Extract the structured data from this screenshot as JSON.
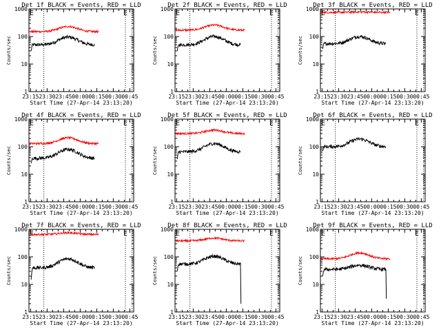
{
  "figure": {
    "x_tick_labels": [
      "23:15",
      "23:30",
      "23:45",
      "00:00",
      "00:15",
      "00:30",
      "00:45"
    ],
    "x_axis_label": "Start Time (27-Apr-14 23:13:20)",
    "y_axis_label": "Counts/sec",
    "y_tick_labels": [
      "1",
      "10",
      "100",
      "1000"
    ],
    "marker_labels": [
      "E",
      "E"
    ],
    "colors": {
      "events": "#000000",
      "lld": "#ff0000",
      "background": "#ffffff"
    }
  },
  "chart_data": [
    {
      "type": "line",
      "title": "Det 1f BLACK = Events, RED = LLD",
      "xlabel": "Start Time (27-Apr-14 23:13:20)",
      "ylabel": "Counts/sec",
      "x_ticks": [
        "23:15",
        "23:30",
        "23:45",
        "00:00",
        "00:15",
        "00:30",
        "00:45"
      ],
      "y_scale": "log",
      "ylim": [
        1,
        1000
      ],
      "series": [
        {
          "name": "BLACK = Events",
          "color": "#000000",
          "x_min": [
            0.5,
            58
          ],
          "y_start": 30,
          "y_base": 50,
          "y_peak": 95
        },
        {
          "name": "RED = LLD",
          "color": "#ff0000",
          "x_min": [
            -1,
            62
          ],
          "y_base": 150,
          "y_peak": 230
        }
      ]
    },
    {
      "type": "line",
      "title": "Det 2f BLACK = Events, RED = LLD",
      "xlabel": "Start Time (27-Apr-14 23:13:20)",
      "ylabel": "Counts/sec",
      "x_ticks": [
        "23:15",
        "23:30",
        "23:45",
        "00:00",
        "00:15",
        "00:30",
        "00:45"
      ],
      "y_scale": "log",
      "ylim": [
        1,
        1000
      ],
      "series": [
        {
          "name": "BLACK = Events",
          "color": "#000000",
          "x_min": [
            0.5,
            58
          ],
          "y_start": 30,
          "y_base": 50,
          "y_peak": 100
        },
        {
          "name": "RED = LLD",
          "color": "#ff0000",
          "x_min": [
            -1,
            62
          ],
          "y_base": 170,
          "y_peak": 260
        }
      ]
    },
    {
      "type": "line",
      "title": "Det 3f BLACK = Events, RED = LLD",
      "xlabel": "Start Time (27-Apr-14 23:13:20)",
      "ylabel": "Counts/sec",
      "x_ticks": [
        "23:15",
        "23:30",
        "23:45",
        "00:00",
        "00:15",
        "00:30",
        "00:45"
      ],
      "y_scale": "log",
      "ylim": [
        1,
        1000
      ],
      "series": [
        {
          "name": "BLACK = Events",
          "color": "#000000",
          "x_min": [
            0.5,
            58
          ],
          "y_start": 35,
          "y_base": 55,
          "y_peak": 100
        },
        {
          "name": "RED = LLD",
          "color": "#ff0000",
          "x_min": [
            -1,
            62
          ],
          "y_base": 750,
          "y_peak": 780
        }
      ]
    },
    {
      "type": "line",
      "title": "Det 4f BLACK = Events, RED = LLD",
      "xlabel": "Start Time (27-Apr-14 23:13:20)",
      "ylabel": "Counts/sec",
      "x_ticks": [
        "23:15",
        "23:30",
        "23:45",
        "00:00",
        "00:15",
        "00:30",
        "00:45"
      ],
      "y_scale": "log",
      "ylim": [
        1,
        1000
      ],
      "series": [
        {
          "name": "BLACK = Events",
          "color": "#000000",
          "x_min": [
            0.5,
            58
          ],
          "y_start": 25,
          "y_base": 38,
          "y_peak": 80
        },
        {
          "name": "RED = LLD",
          "color": "#ff0000",
          "x_min": [
            -1,
            62
          ],
          "y_base": 130,
          "y_peak": 210
        }
      ]
    },
    {
      "type": "line",
      "title": "Det 5f BLACK = Events, RED = LLD",
      "xlabel": "Start Time (27-Apr-14 23:13:20)",
      "ylabel": "Counts/sec",
      "x_ticks": [
        "23:15",
        "23:30",
        "23:45",
        "00:00",
        "00:15",
        "00:30",
        "00:45"
      ],
      "y_scale": "log",
      "ylim": [
        1,
        1000
      ],
      "series": [
        {
          "name": "BLACK = Events",
          "color": "#000000",
          "x_min": [
            0.5,
            58
          ],
          "y_start": 35,
          "y_base": 65,
          "y_peak": 130
        },
        {
          "name": "RED = LLD",
          "color": "#ff0000",
          "x_min": [
            -1,
            62
          ],
          "y_base": 300,
          "y_peak": 400
        }
      ]
    },
    {
      "type": "line",
      "title": "Det 6f BLACK = Events, RED = LLD",
      "xlabel": "Start Time (27-Apr-14 23:13:20)",
      "ylabel": "Counts/sec",
      "x_ticks": [
        "23:15",
        "23:30",
        "23:45",
        "00:00",
        "00:15",
        "00:30",
        "00:45"
      ],
      "y_scale": "log",
      "ylim": [
        1,
        1000
      ],
      "series": [
        {
          "name": "BLACK = Events",
          "color": "#000000",
          "x_min": [
            0.5,
            58
          ],
          "y_start": 70,
          "y_base": 100,
          "y_peak": 190
        }
      ]
    },
    {
      "type": "line",
      "title": "Det 7f BLACK = Events, RED = LLD",
      "xlabel": "Start Time (27-Apr-14 23:13:20)",
      "ylabel": "Counts/sec",
      "x_ticks": [
        "23:15",
        "23:30",
        "23:45",
        "00:00",
        "00:15",
        "00:30",
        "00:45"
      ],
      "y_scale": "log",
      "ylim": [
        1,
        1000
      ],
      "series": [
        {
          "name": "BLACK = Events",
          "color": "#000000",
          "x_min": [
            0.5,
            58
          ],
          "y_start": 15,
          "y_base": 40,
          "y_peak": 85
        },
        {
          "name": "RED = LLD",
          "color": "#ff0000",
          "x_min": [
            -1,
            62
          ],
          "y_base": 650,
          "y_peak": 750
        }
      ]
    },
    {
      "type": "line",
      "title": "Det 8f BLACK = Events, RED = LLD",
      "xlabel": "Start Time (27-Apr-14 23:13:20)",
      "ylabel": "Counts/sec",
      "x_ticks": [
        "23:15",
        "23:30",
        "23:45",
        "00:00",
        "00:15",
        "00:30",
        "00:45"
      ],
      "y_scale": "log",
      "ylim": [
        1,
        1000
      ],
      "series": [
        {
          "name": "BLACK = Events",
          "color": "#000000",
          "x_min": [
            0.5,
            58
          ],
          "y_start": 30,
          "y_base": 55,
          "y_peak": 105,
          "y_end": 2
        },
        {
          "name": "RED = LLD",
          "color": "#ff0000",
          "x_min": [
            -1,
            62
          ],
          "y_base": 380,
          "y_peak": 480
        }
      ]
    },
    {
      "type": "line",
      "title": "Det 9f BLACK = Events, RED = LLD",
      "xlabel": "Start Time (27-Apr-14 23:13:20)",
      "ylabel": "Counts/sec",
      "x_ticks": [
        "23:15",
        "23:30",
        "23:45",
        "00:00",
        "00:15",
        "00:30",
        "00:45"
      ],
      "y_scale": "log",
      "ylim": [
        1,
        1000
      ],
      "series": [
        {
          "name": "BLACK = Events",
          "color": "#000000",
          "x_min": [
            0.5,
            58
          ],
          "y_start": 20,
          "y_base": 35,
          "y_peak": 50,
          "y_end": 3
        },
        {
          "name": "RED = LLD",
          "color": "#ff0000",
          "x_min": [
            -1,
            62
          ],
          "y_base": 85,
          "y_peak": 140
        }
      ]
    }
  ]
}
